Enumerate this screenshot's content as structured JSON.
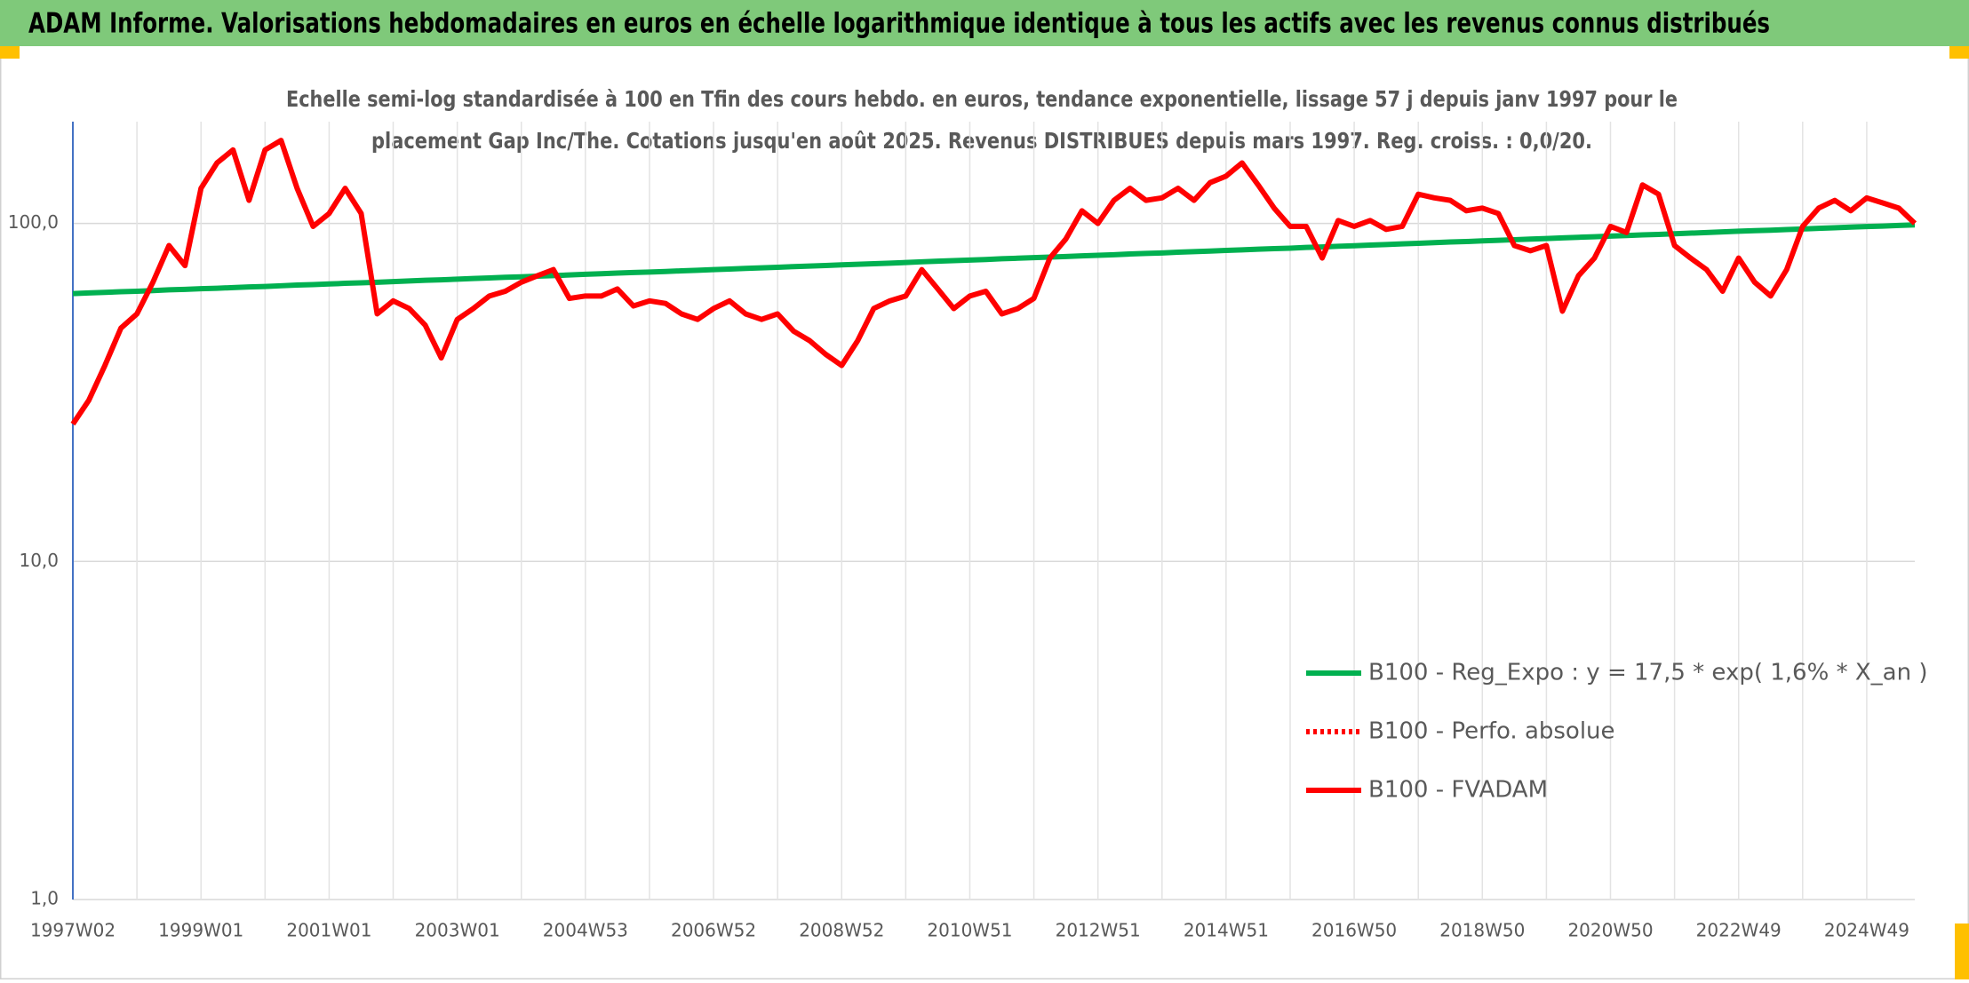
{
  "chart_data": {
    "type": "line",
    "header": "ADAM Informe. Valorisations hebdomadaires en euros en échelle logarithmique identique à tous les actifs avec les revenus connus distribués",
    "title": [
      "Echelle semi-log standardisée à 100 en Tfin des cours hebdo. en euros, tendance exponentielle, lissage 57 j depuis janv 1997 pour le",
      "placement Gap Inc/The. Cotations jusqu'en août 2025. Revenus DISTRIBUES depuis mars 1997. Reg. croiss. : 0,0/20."
    ],
    "log_scale": true,
    "grid": true,
    "ylim": [
      1,
      200
    ],
    "yticks": [
      {
        "value": 1,
        "label": "1,0"
      },
      {
        "value": 10,
        "label": "10,0"
      },
      {
        "value": 100,
        "label": "100,0"
      }
    ],
    "categories": [
      "1997W02",
      null,
      null,
      null,
      null,
      null,
      null,
      null,
      "1999W01",
      null,
      null,
      null,
      null,
      null,
      null,
      null,
      "2001W01",
      null,
      null,
      null,
      null,
      null,
      null,
      null,
      "2003W01",
      null,
      null,
      null,
      null,
      null,
      null,
      null,
      "2004W53",
      null,
      null,
      null,
      null,
      null,
      null,
      null,
      "2006W52",
      null,
      null,
      null,
      null,
      null,
      null,
      null,
      "2008W52",
      null,
      null,
      null,
      null,
      null,
      null,
      null,
      "2010W51",
      null,
      null,
      null,
      null,
      null,
      null,
      null,
      "2012W51",
      null,
      null,
      null,
      null,
      null,
      null,
      null,
      "2014W51",
      null,
      null,
      null,
      null,
      null,
      null,
      null,
      "2016W50",
      null,
      null,
      null,
      null,
      null,
      null,
      null,
      "2018W50",
      null,
      null,
      null,
      null,
      null,
      null,
      null,
      "2020W50",
      null,
      null,
      null,
      null,
      null,
      null,
      null,
      "2022W49",
      null,
      null,
      null,
      null,
      null,
      null,
      null,
      "2024W49",
      null,
      null,
      null
    ],
    "series": [
      {
        "name": "B100 - Reg_Expo : y = 17,5 * exp( 1,6% *  X_an )",
        "color": "#00b050",
        "dash": "solid",
        "values": [
          62.0,
          62.3,
          62.5,
          62.8,
          63.0,
          63.3,
          63.6,
          63.8,
          64.1,
          64.3,
          64.6,
          64.9,
          65.1,
          65.4,
          65.7,
          65.9,
          66.2,
          66.5,
          66.7,
          67.0,
          67.3,
          67.6,
          67.9,
          68.1,
          68.4,
          68.7,
          69.0,
          69.3,
          69.5,
          69.8,
          70.1,
          70.4,
          70.7,
          71.0,
          71.3,
          71.6,
          71.8,
          72.1,
          72.4,
          72.7,
          73.0,
          73.3,
          73.6,
          73.9,
          74.2,
          74.5,
          74.8,
          75.1,
          75.4,
          75.7,
          76.0,
          76.3,
          76.6,
          77.0,
          77.3,
          77.6,
          77.9,
          78.2,
          78.6,
          78.9,
          79.2,
          79.5,
          79.8,
          80.2,
          80.5,
          80.8,
          81.2,
          81.5,
          81.8,
          82.2,
          82.5,
          82.8,
          83.2,
          83.5,
          83.9,
          84.2,
          84.5,
          84.9,
          85.2,
          85.6,
          85.9,
          86.3,
          86.6,
          87.0,
          87.3,
          87.7,
          88.1,
          88.4,
          88.8,
          89.1,
          89.5,
          89.9,
          90.2,
          90.6,
          91.0,
          91.3,
          91.7,
          92.1,
          92.5,
          92.8,
          93.2,
          93.6,
          94.0,
          94.4,
          94.8,
          95.2,
          95.5,
          95.9,
          96.3,
          96.7,
          97.1,
          97.5,
          97.9,
          98.2,
          98.6,
          99.0
        ]
      },
      {
        "name": "B100 - Perfo. absolue",
        "color": "#ff0000",
        "dash": "dotted",
        "values": [
          null,
          null,
          null,
          null,
          null,
          null,
          null,
          null,
          null,
          null,
          null,
          null,
          null,
          null,
          null,
          null,
          null,
          null,
          null,
          null,
          null,
          null,
          null,
          null,
          null,
          null,
          null,
          null,
          null,
          null,
          null,
          null,
          null,
          null,
          null,
          null,
          null,
          null,
          null,
          null,
          null,
          null,
          null,
          null,
          null,
          null,
          null,
          null,
          null,
          null,
          null,
          null,
          null,
          null,
          null,
          null,
          null,
          null,
          null,
          null,
          null,
          null,
          null,
          null,
          null,
          null,
          null,
          null,
          null,
          null,
          null,
          null,
          null,
          null,
          null,
          null,
          null,
          null,
          null,
          null,
          null,
          null,
          null,
          null,
          null,
          null,
          null,
          null,
          null,
          null,
          null,
          null,
          null,
          null,
          null,
          null,
          null,
          null,
          null,
          null,
          null,
          null,
          null,
          null,
          null,
          null,
          null,
          null,
          null,
          null,
          null,
          null,
          null,
          null,
          null,
          null
        ]
      },
      {
        "name": "B100 - FVADAM",
        "color": "#ff0000",
        "dash": "solid",
        "values": [
          25.5,
          30,
          38,
          49,
          54,
          67,
          86,
          75,
          127,
          151,
          165,
          117,
          165,
          176,
          127,
          98,
          107,
          127,
          107,
          54,
          59,
          56,
          50,
          40,
          52,
          56,
          61,
          63,
          67,
          70,
          73,
          60,
          61,
          61,
          64,
          57,
          59,
          58,
          54,
          52,
          56,
          59,
          54,
          52,
          54,
          48,
          45,
          41,
          38,
          45,
          56,
          59,
          61,
          73,
          64,
          56,
          61,
          63,
          54,
          56,
          60,
          79,
          90,
          109,
          100,
          117,
          127,
          117,
          119,
          127,
          117,
          132,
          138,
          151,
          130,
          111,
          98,
          98,
          79,
          102,
          98,
          102,
          96,
          98,
          122,
          119,
          117,
          109,
          111,
          107,
          86,
          83,
          86,
          55,
          70,
          79,
          98,
          94,
          130,
          122,
          86,
          79,
          73,
          63,
          79,
          67,
          61,
          73,
          98,
          111,
          117,
          109,
          119,
          115,
          111,
          100
        ]
      }
    ],
    "legend": "lower-right"
  }
}
